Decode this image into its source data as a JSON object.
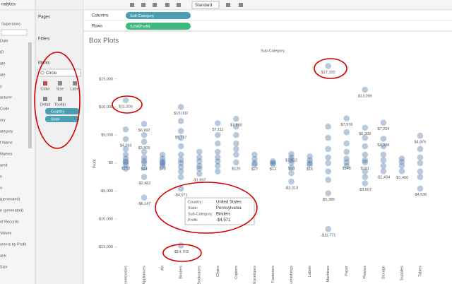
{
  "sidebar": {
    "header": "nalytics",
    "source": "Superstore",
    "fields": [
      "Date",
      "ID",
      "ate",
      "ate",
      "y",
      "acturer",
      "Code",
      "ory",
      "ategory",
      "t Name",
      "Names",
      "amlt",
      "n",
      "o",
      "(generated)",
      "e (generated)",
      "of Records",
      "Values",
      "omers by Profit",
      "ank",
      "Size"
    ]
  },
  "toolbar": {
    "fit": "Standard"
  },
  "cards": {
    "pages": "Pages",
    "filters": "Filters",
    "marks": {
      "title": "Marks",
      "type": "Circle",
      "buttons": [
        "Color",
        "Size",
        "Label",
        "Detail",
        "Tooltip"
      ],
      "pills": [
        "Country",
        "State"
      ]
    }
  },
  "shelves": {
    "columns": {
      "label": "Columns",
      "pill": "Sub-Category"
    },
    "rows": {
      "label": "Rows",
      "pill": "SUM(Profit)"
    }
  },
  "chart_data": {
    "type": "strip",
    "title": "Box Plots",
    "header": "Sub-Category",
    "y_label": "Profit",
    "color": "#4e79a7",
    "categories": [
      "Accessories",
      "Appliances",
      "Art",
      "Binders",
      "Bookcases",
      "Chairs",
      "Copiers",
      "Envelopes",
      "Fasteners",
      "Furnishings",
      "Labels",
      "Machines",
      "Paper",
      "Phones",
      "Storage",
      "Supplies",
      "Tables"
    ],
    "values": [
      [
        11206,
        6000,
        4263,
        2500,
        1500,
        800,
        300,
        152,
        -300,
        -1000
      ],
      [
        6992,
        5000,
        3809,
        2000,
        1000,
        400,
        44,
        -800,
        -2482,
        -6147
      ],
      [
        1500,
        800,
        300,
        70,
        -200,
        -600
      ],
      [
        10002,
        7500,
        5717,
        4500,
        3000,
        1500,
        600,
        0,
        -700,
        -1500,
        -2500,
        -4571,
        -14703
      ],
      [
        2000,
        1000,
        300,
        -500,
        -1000,
        -1897
      ],
      [
        7111,
        5000,
        3500,
        2000,
        1000,
        300,
        -500,
        -1500
      ],
      [
        7890,
        6500,
        5000,
        3500,
        2500,
        1500,
        120
      ],
      [
        1500,
        700,
        27,
        -300
      ],
      [
        300,
        13,
        -200
      ],
      [
        1612,
        1000,
        500,
        93,
        -800,
        -1800,
        -3313
      ],
      [
        1200,
        500,
        16,
        -300
      ],
      [
        17320,
        6500,
        4500,
        2500,
        1000,
        0,
        -1500,
        -3000,
        -5385,
        -11771
      ],
      [
        7978,
        5500,
        3500,
        2000,
        800,
        148,
        -500
      ],
      [
        13099,
        6309,
        4500,
        3000,
        1500,
        500,
        131,
        -1500,
        -2500,
        -3607
      ],
      [
        7204,
        4338,
        3000,
        1500,
        500,
        -500,
        -1434
      ],
      [
        800,
        200,
        -500,
        -1460
      ],
      [
        4876,
        2500,
        1000,
        0,
        -1500,
        -2500,
        -4536
      ]
    ],
    "value_labels": [
      [
        "$11,206",
        null,
        "$4,263",
        null,
        null,
        null,
        null,
        "$152",
        null,
        null
      ],
      [
        "$6,992",
        null,
        "$3,809",
        null,
        null,
        null,
        "$44",
        null,
        "-$2,482",
        "-$6,147"
      ],
      [
        null,
        null,
        null,
        "$70",
        null,
        null
      ],
      [
        "$10,002",
        null,
        "$5,717",
        null,
        null,
        null,
        null,
        null,
        null,
        null,
        null,
        "-$4,571",
        "-$14,703"
      ],
      [
        null,
        null,
        null,
        null,
        null,
        "-$1,897"
      ],
      [
        "$7,111",
        null,
        null,
        null,
        null,
        null,
        null,
        null
      ],
      [
        "$7,890",
        null,
        null,
        null,
        null,
        null,
        "$120"
      ],
      [
        null,
        null,
        "$27",
        null
      ],
      [
        null,
        "$13",
        null
      ],
      [
        "$1,612",
        null,
        null,
        "$93",
        null,
        null,
        "-$3,313"
      ],
      [
        null,
        null,
        "$16",
        null
      ],
      [
        "$17,320",
        null,
        null,
        null,
        null,
        null,
        null,
        null,
        "-$5,385",
        "-$11,771"
      ],
      [
        "$7,978",
        null,
        null,
        null,
        null,
        "$148",
        null
      ],
      [
        "$13,099",
        "$6,309",
        null,
        null,
        null,
        null,
        "$131",
        null,
        null,
        "-$3,607"
      ],
      [
        "$7,204",
        "$4,338",
        null,
        null,
        null,
        null,
        "-$1,434"
      ],
      [
        null,
        null,
        null,
        "-$1,460"
      ],
      [
        "$4,876",
        null,
        null,
        null,
        null,
        null,
        "-$4,536"
      ]
    ],
    "ylim": [
      -17800,
      18000
    ],
    "yticks": [
      {
        "value": 15000,
        "label": "$15,000"
      },
      {
        "value": 10000,
        "label": "$10,000"
      },
      {
        "value": 5000,
        "label": "$5,000"
      },
      {
        "value": 0,
        "label": "$0"
      },
      {
        "value": -5000,
        "label": "-$5,000"
      },
      {
        "value": -10000,
        "label": "-$10,000"
      },
      {
        "value": -15000,
        "label": "-$15,000"
      }
    ],
    "tooltip": [
      [
        "Country:",
        "United States"
      ],
      [
        "State:",
        "Pennsylvania"
      ],
      [
        "Sub-Category:",
        "Binders"
      ],
      [
        "Profit:",
        "-$4,571"
      ]
    ]
  }
}
